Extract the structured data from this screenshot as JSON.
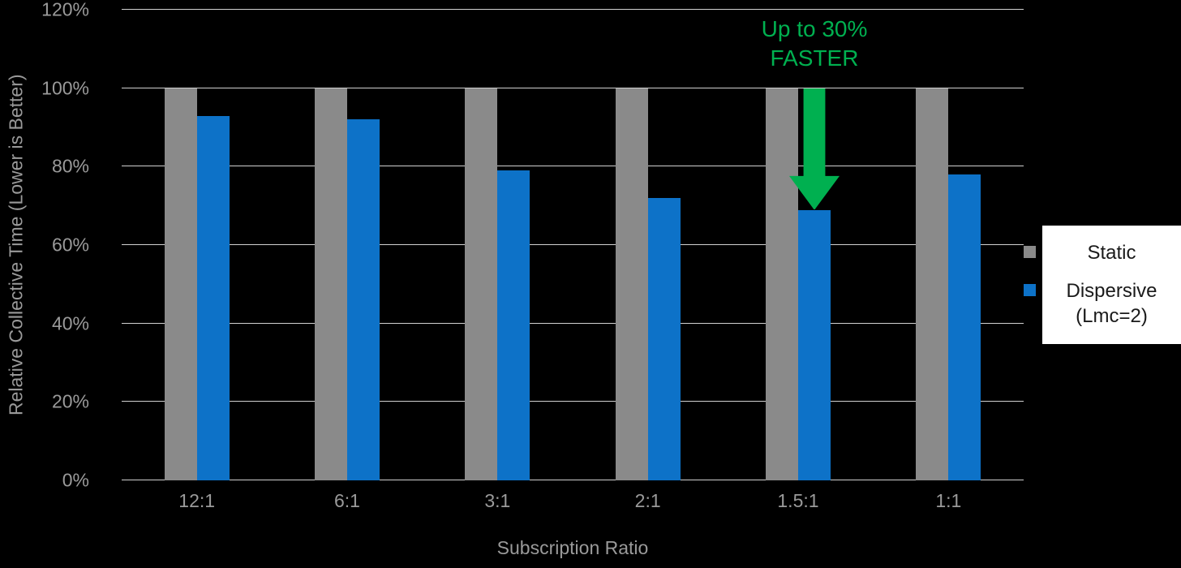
{
  "chart_data": {
    "type": "bar",
    "categories": [
      "12:1",
      "6:1",
      "3:1",
      "2:1",
      "1.5:1",
      "1:1"
    ],
    "series": [
      {
        "name": "Static",
        "color": "#8a8a8a",
        "values": [
          100,
          100,
          100,
          100,
          100,
          100
        ]
      },
      {
        "name": "Dispersive (Lmc=2)",
        "color": "#0d72c8",
        "values": [
          93,
          92,
          79,
          72,
          69,
          78
        ]
      }
    ],
    "xlabel": "Subscription Ratio",
    "ylabel": "Relative Collective Time (Lower is Better)",
    "ylim": [
      0,
      120
    ],
    "yticks": [
      "0%",
      "20%",
      "40%",
      "60%",
      "80%",
      "100%",
      "120%"
    ],
    "grid": true,
    "legend_position": "right",
    "background_color": "#000000",
    "axis_text_color": "#9a9a9a",
    "gridline_color": "#d0d0d0",
    "annotation": {
      "line1": "Up to 30%",
      "line2": "FASTER",
      "color": "#00b050",
      "target_category": "1.5:1",
      "arrow": "down"
    }
  }
}
